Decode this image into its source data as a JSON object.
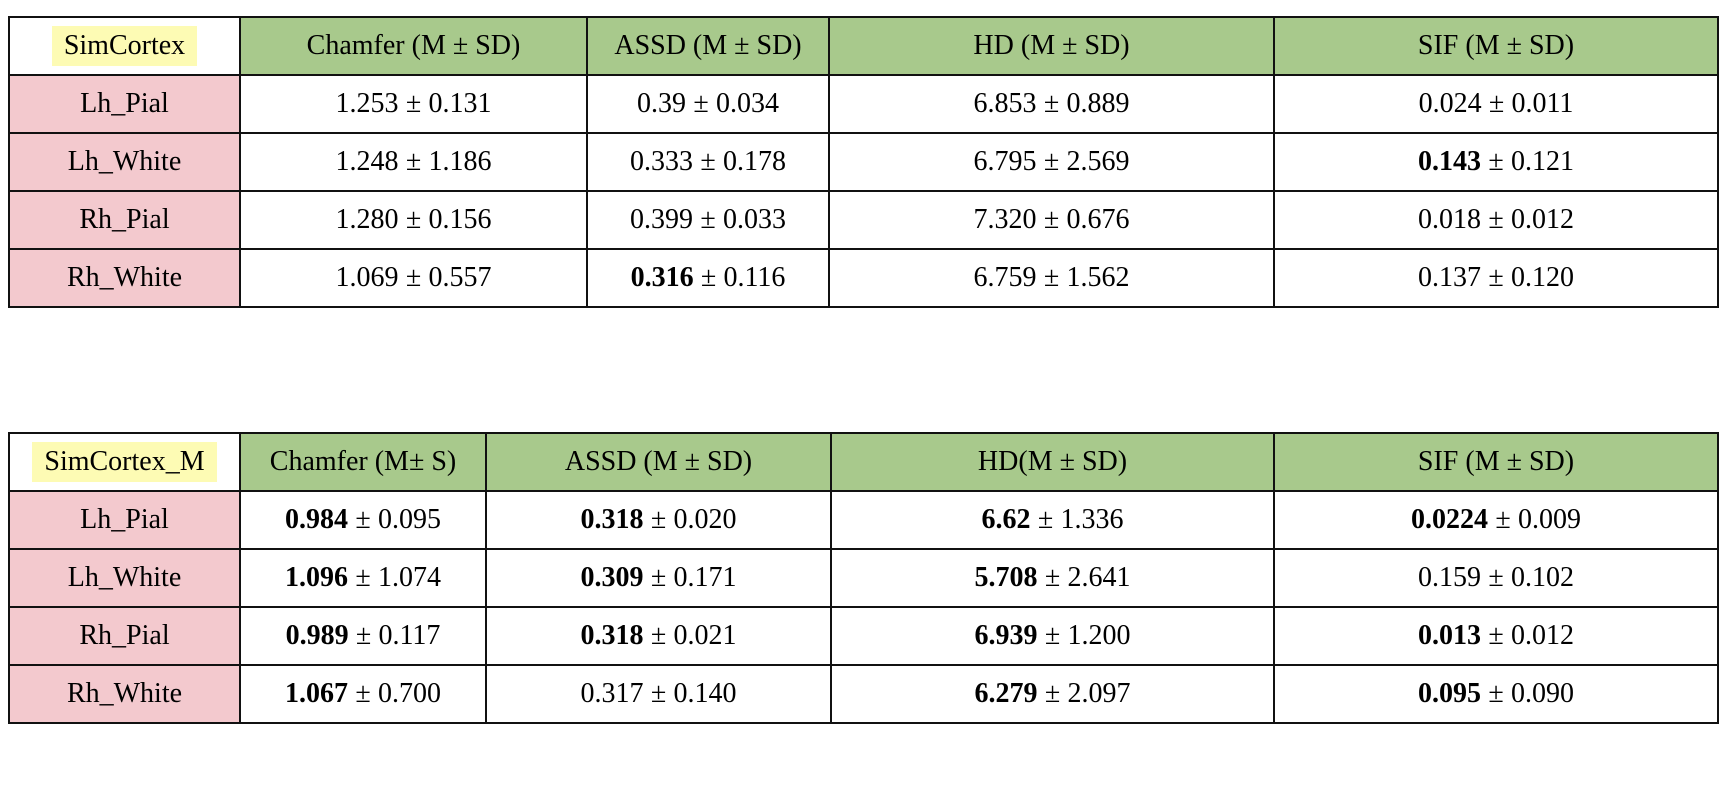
{
  "plus_minus": "±",
  "colors": {
    "header_green": "#a8c98c",
    "row_label_pink": "#f3c9ce",
    "title_highlight_yellow": "#fdfbb4",
    "border": "#111111",
    "background": "#ffffff"
  },
  "tables": [
    {
      "title": "SimCortex",
      "columns": [
        "Chamfer (M ± SD)",
        "ASSD (M ± SD)",
        "HD (M ± SD)",
        "SIF (M ± SD)"
      ],
      "rows": [
        {
          "label": "Lh_Pial",
          "cells": [
            {
              "mean": "1.253",
              "sd": "0.131",
              "bold": false
            },
            {
              "mean": "0.39",
              "sd": "0.034",
              "bold": false
            },
            {
              "mean": "6.853",
              "sd": "0.889",
              "bold": false
            },
            {
              "mean": "0.024",
              "sd": "0.011",
              "bold": false
            }
          ]
        },
        {
          "label": "Lh_White",
          "cells": [
            {
              "mean": "1.248",
              "sd": "1.186",
              "bold": false
            },
            {
              "mean": "0.333",
              "sd": "0.178",
              "bold": false
            },
            {
              "mean": "6.795",
              "sd": "2.569",
              "bold": false
            },
            {
              "mean": "0.143",
              "sd": "0.121",
              "bold": true
            }
          ]
        },
        {
          "label": "Rh_Pial",
          "cells": [
            {
              "mean": "1.280",
              "sd": "0.156",
              "bold": false
            },
            {
              "mean": "0.399",
              "sd": "0.033",
              "bold": false
            },
            {
              "mean": "7.320",
              "sd": "0.676",
              "bold": false
            },
            {
              "mean": "0.018",
              "sd": "0.012",
              "bold": false
            }
          ]
        },
        {
          "label": "Rh_White",
          "cells": [
            {
              "mean": "1.069",
              "sd": "0.557",
              "bold": false
            },
            {
              "mean": "0.316",
              "sd": "0.116",
              "bold": true
            },
            {
              "mean": "6.759",
              "sd": "1.562",
              "bold": false
            },
            {
              "mean": "0.137",
              "sd": "0.120",
              "bold": false
            }
          ]
        }
      ]
    },
    {
      "title": "SimCortex_M",
      "columns": [
        "Chamfer (M± S)",
        "ASSD (M ± SD)",
        "HD(M ± SD)",
        "SIF (M ± SD)"
      ],
      "rows": [
        {
          "label": "Lh_Pial",
          "cells": [
            {
              "mean": "0.984",
              "sd": "0.095",
              "bold": true
            },
            {
              "mean": "0.318",
              "sd": "0.020",
              "bold": true
            },
            {
              "mean": "6.62",
              "sd": "1.336",
              "bold": true
            },
            {
              "mean": "0.0224",
              "sd": "0.009",
              "bold": true
            }
          ]
        },
        {
          "label": "Lh_White",
          "cells": [
            {
              "mean": "1.096",
              "sd": "1.074",
              "bold": true
            },
            {
              "mean": "0.309",
              "sd": "0.171",
              "bold": true
            },
            {
              "mean": "5.708",
              "sd": "2.641",
              "bold": true
            },
            {
              "mean": "0.159",
              "sd": "0.102",
              "bold": false
            }
          ]
        },
        {
          "label": "Rh_Pial",
          "cells": [
            {
              "mean": "0.989",
              "sd": "0.117",
              "bold": true
            },
            {
              "mean": "0.318",
              "sd": "0.021",
              "bold": true
            },
            {
              "mean": "6.939",
              "sd": "1.200",
              "bold": true
            },
            {
              "mean": "0.013",
              "sd": "0.012",
              "bold": true
            }
          ]
        },
        {
          "label": "Rh_White",
          "cells": [
            {
              "mean": "1.067",
              "sd": "0.700",
              "bold": true
            },
            {
              "mean": "0.317",
              "sd": "0.140",
              "bold": false
            },
            {
              "mean": "6.279",
              "sd": "2.097",
              "bold": true
            },
            {
              "mean": "0.095",
              "sd": "0.090",
              "bold": true
            }
          ]
        }
      ]
    }
  ]
}
